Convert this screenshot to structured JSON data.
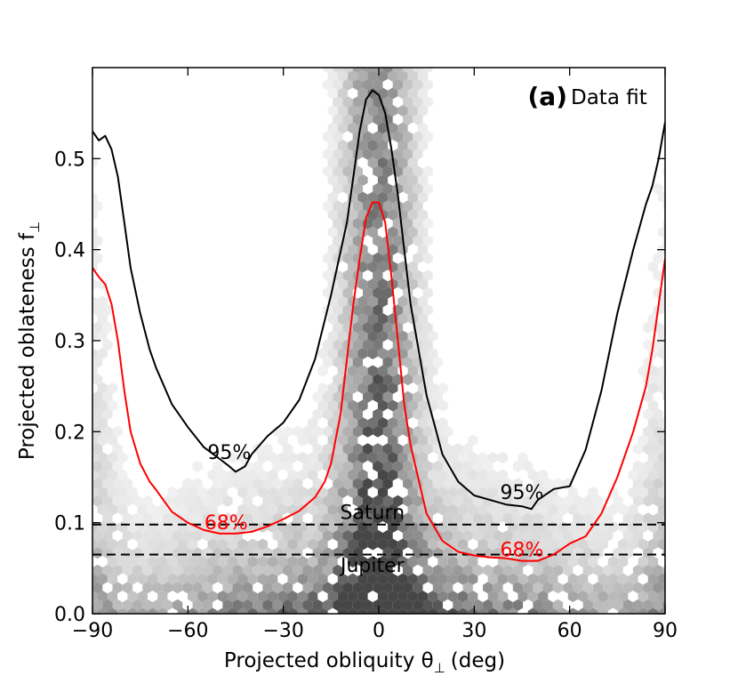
{
  "chart_data": {
    "type": "scatter",
    "subtype": "hexbin-density-with-contours",
    "panel_label": "(a)",
    "panel_title": "Data fit",
    "xlabel": "Projected obliquity θ",
    "xlabel_sub": "⊥",
    "xlabel_unit": "(deg)",
    "ylabel": "Projected oblateness f",
    "ylabel_sub": "⊥",
    "xlim": [
      -90,
      90
    ],
    "ylim": [
      0,
      0.6
    ],
    "xticks": [
      -90,
      -60,
      -30,
      0,
      30,
      60,
      90
    ],
    "xtick_labels": [
      "−90",
      "−60",
      "−30",
      "0",
      "30",
      "60",
      "90"
    ],
    "yticks": [
      0,
      0.1,
      0.2,
      0.3,
      0.4,
      0.5
    ],
    "ytick_labels": [
      "0.0",
      "0.1",
      "0.2",
      "0.3",
      "0.4",
      "0.5"
    ],
    "reference_lines": [
      {
        "name": "Saturn",
        "y": 0.098,
        "style": "dashed",
        "color": "#000000"
      },
      {
        "name": "Jupiter",
        "y": 0.065,
        "style": "dashed",
        "color": "#000000"
      }
    ],
    "series": [
      {
        "name": "95%",
        "color": "#000000",
        "x": [
          -90,
          -88,
          -86,
          -84,
          -82,
          -80,
          -78,
          -75,
          -72,
          -70,
          -65,
          -60,
          -55,
          -50,
          -47,
          -45,
          -42,
          -40,
          -35,
          -30,
          -25,
          -20,
          -15,
          -10,
          -8,
          -6,
          -4,
          -2,
          0,
          2,
          4,
          6,
          8,
          10,
          15,
          20,
          25,
          30,
          35,
          40,
          45,
          48,
          50,
          55,
          60,
          65,
          70,
          75,
          80,
          84,
          86,
          88,
          90
        ],
        "y": [
          0.53,
          0.52,
          0.525,
          0.51,
          0.48,
          0.43,
          0.38,
          0.33,
          0.29,
          0.27,
          0.23,
          0.205,
          0.183,
          0.17,
          0.162,
          0.156,
          0.162,
          0.175,
          0.195,
          0.21,
          0.235,
          0.28,
          0.35,
          0.43,
          0.48,
          0.53,
          0.565,
          0.575,
          0.57,
          0.55,
          0.51,
          0.46,
          0.4,
          0.34,
          0.24,
          0.175,
          0.145,
          0.13,
          0.125,
          0.12,
          0.118,
          0.115,
          0.125,
          0.137,
          0.14,
          0.18,
          0.245,
          0.33,
          0.4,
          0.45,
          0.47,
          0.5,
          0.54
        ]
      },
      {
        "name": "68%",
        "color": "#ff0000",
        "x": [
          -90,
          -88,
          -86,
          -84,
          -82,
          -80,
          -78,
          -75,
          -72,
          -70,
          -65,
          -60,
          -55,
          -50,
          -45,
          -40,
          -35,
          -30,
          -25,
          -20,
          -17,
          -15,
          -12,
          -10,
          -8,
          -6,
          -4,
          -2,
          0,
          2,
          4,
          6,
          8,
          10,
          15,
          20,
          25,
          30,
          35,
          40,
          45,
          50,
          55,
          60,
          65,
          70,
          75,
          80,
          84,
          86,
          88,
          90
        ],
        "y": [
          0.38,
          0.37,
          0.362,
          0.34,
          0.3,
          0.245,
          0.2,
          0.165,
          0.145,
          0.136,
          0.112,
          0.1,
          0.092,
          0.088,
          0.088,
          0.09,
          0.096,
          0.104,
          0.113,
          0.128,
          0.145,
          0.165,
          0.22,
          0.28,
          0.34,
          0.39,
          0.435,
          0.452,
          0.452,
          0.43,
          0.37,
          0.3,
          0.23,
          0.185,
          0.11,
          0.08,
          0.068,
          0.064,
          0.062,
          0.061,
          0.058,
          0.058,
          0.065,
          0.077,
          0.085,
          0.11,
          0.15,
          0.2,
          0.25,
          0.29,
          0.34,
          0.39
        ]
      }
    ],
    "annotations": [
      {
        "text": "95%",
        "x": -47,
        "y": 0.17,
        "color": "#000000"
      },
      {
        "text": "95%",
        "x": 45,
        "y": 0.126,
        "color": "#000000"
      },
      {
        "text": "68%",
        "x": -48,
        "y": 0.093,
        "color": "#ff0000"
      },
      {
        "text": "68%",
        "x": 45,
        "y": 0.063,
        "color": "#ff0000"
      },
      {
        "text": "Saturn",
        "x": -2,
        "y": 0.104,
        "color": "#000000"
      },
      {
        "text": "Jupiter",
        "x": -2,
        "y": 0.046,
        "color": "#000000"
      }
    ]
  }
}
